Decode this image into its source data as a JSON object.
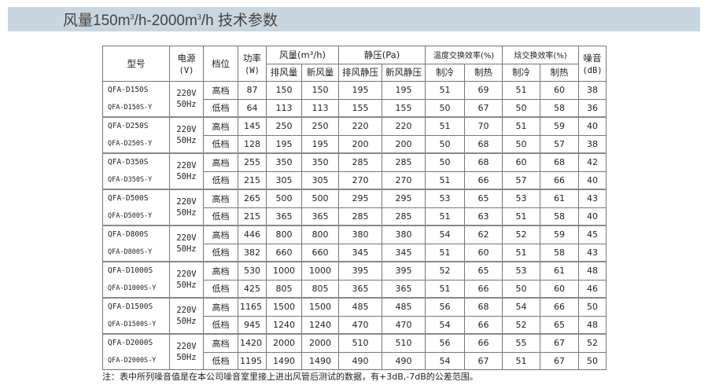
{
  "header": {
    "title_prefix": "风量150m",
    "sup1": "3",
    "title_mid": "/h-2000m",
    "sup2": "3",
    "title_suffix": "/h 技术参数",
    "band_color": "#c9d6df"
  },
  "table": {
    "headers": {
      "model": "型号",
      "power": "电源",
      "power_unit": "(V)",
      "gear": "档位",
      "wattage": "功率",
      "wattage_unit": "(W)",
      "airflow": "风量(m³/h)",
      "static": "静压(Pa)",
      "temp_eff": "温度交换效率(%)",
      "enth_eff": "焓交换效率(%)",
      "noise": "噪音",
      "noise_unit": "(dB)",
      "sub": [
        "排风量",
        "新风量",
        "排风静压",
        "新风静压",
        "制冷",
        "制热",
        "制冷",
        "制热"
      ]
    },
    "groups": [
      {
        "models": [
          "QFA-D150S",
          "QFA-D150S-Y"
        ],
        "voltage": [
          "220V",
          "50Hz"
        ],
        "rows": [
          [
            "高档",
            "87",
            "150",
            "150",
            "195",
            "195",
            "51",
            "69",
            "51",
            "60",
            "38"
          ],
          [
            "低档",
            "64",
            "113",
            "113",
            "155",
            "155",
            "50",
            "67",
            "50",
            "58",
            "36"
          ]
        ]
      },
      {
        "models": [
          "QFA-D250S",
          "QFA-D250S-Y"
        ],
        "voltage": [
          "220V",
          "50Hz"
        ],
        "rows": [
          [
            "高档",
            "145",
            "250",
            "250",
            "220",
            "220",
            "51",
            "70",
            "51",
            "59",
            "40"
          ],
          [
            "低档",
            "128",
            "195",
            "195",
            "200",
            "200",
            "50",
            "68",
            "50",
            "57",
            "38"
          ]
        ]
      },
      {
        "models": [
          "QFA-D350S",
          "QFA-D350S-Y"
        ],
        "voltage": [
          "220V",
          "50Hz"
        ],
        "rows": [
          [
            "高档",
            "255",
            "350",
            "350",
            "285",
            "285",
            "50",
            "68",
            "60",
            "68",
            "42"
          ],
          [
            "低档",
            "215",
            "305",
            "305",
            "270",
            "270",
            "51",
            "66",
            "57",
            "66",
            "40"
          ]
        ]
      },
      {
        "models": [
          "QFA-D500S",
          "QFA-D500S-Y"
        ],
        "voltage": [
          "220V",
          "50Hz"
        ],
        "rows": [
          [
            "高档",
            "265",
            "500",
            "500",
            "295",
            "295",
            "53",
            "65",
            "53",
            "61",
            "43"
          ],
          [
            "低档",
            "215",
            "365",
            "365",
            "285",
            "285",
            "51",
            "63",
            "51",
            "58",
            "40"
          ]
        ]
      },
      {
        "models": [
          "QFA-D800S",
          "QFA-D800S-Y"
        ],
        "voltage": [
          "220V",
          "50Hz"
        ],
        "rows": [
          [
            "高档",
            "446",
            "800",
            "800",
            "380",
            "380",
            "54",
            "62",
            "52",
            "59",
            "45"
          ],
          [
            "低档",
            "382",
            "660",
            "660",
            "345",
            "345",
            "51",
            "60",
            "51",
            "58",
            "43"
          ]
        ]
      },
      {
        "models": [
          "QFA-D1000S",
          "QFA-D1000S-Y"
        ],
        "voltage": [
          "220V",
          "50Hz"
        ],
        "rows": [
          [
            "高档",
            "530",
            "1000",
            "1000",
            "395",
            "395",
            "52",
            "65",
            "53",
            "61",
            "48"
          ],
          [
            "低档",
            "425",
            "805",
            "805",
            "365",
            "365",
            "51",
            "66",
            "50",
            "60",
            "46"
          ]
        ]
      },
      {
        "models": [
          "QFA-D1500S",
          "QFA-D1500S-Y"
        ],
        "voltage": [
          "220V",
          "50Hz"
        ],
        "rows": [
          [
            "高档",
            "1165",
            "1500",
            "1500",
            "485",
            "485",
            "56",
            "68",
            "54",
            "66",
            "50"
          ],
          [
            "低档",
            "945",
            "1240",
            "1240",
            "470",
            "470",
            "54",
            "66",
            "52",
            "65",
            "48"
          ]
        ]
      },
      {
        "models": [
          "QFA-D2000S",
          "QFA-D2000S-Y"
        ],
        "voltage": [
          "220V",
          "50Hz"
        ],
        "rows": [
          [
            "高档",
            "1420",
            "2000",
            "2000",
            "510",
            "510",
            "56",
            "66",
            "55",
            "67",
            "52"
          ],
          [
            "低档",
            "1195",
            "1490",
            "1490",
            "490",
            "490",
            "54",
            "67",
            "51",
            "67",
            "50"
          ]
        ]
      }
    ]
  },
  "note": "注：表中所列噪音值是在本公司噪音室里接上进出风管后测试的数据，有+3dB,-7dB的公差范围。"
}
